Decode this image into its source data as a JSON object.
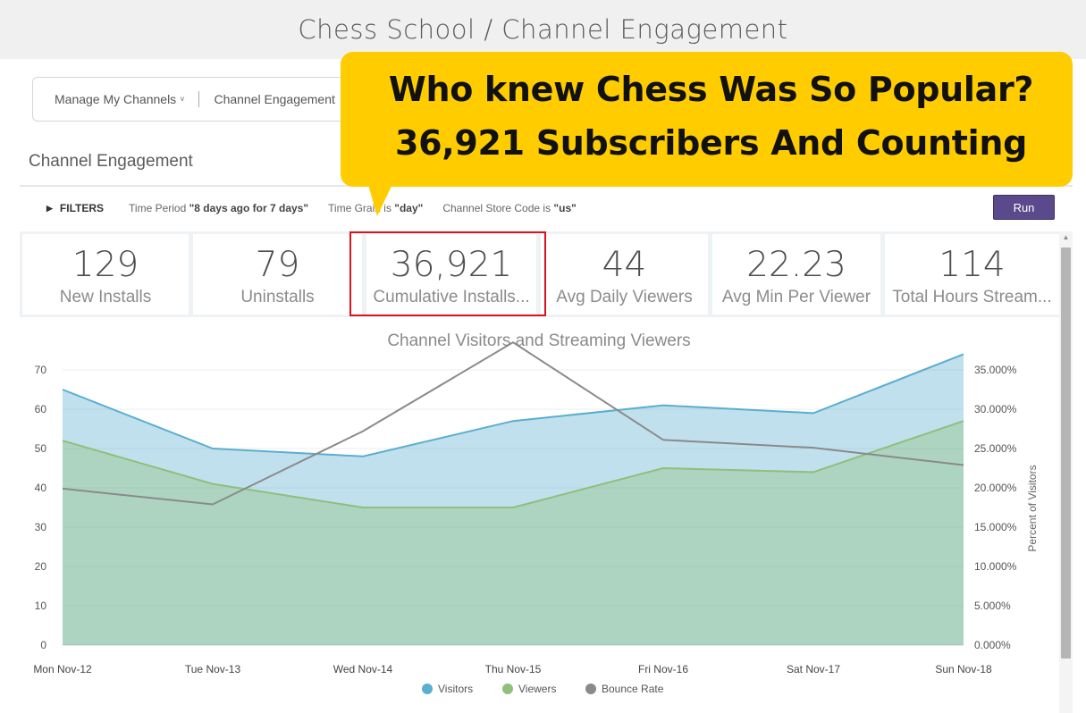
{
  "page": {
    "title": "Chess School / Channel Engagement"
  },
  "breadcrumb": {
    "item1": "Manage My Channels",
    "item2": "Channel Engagement"
  },
  "section": {
    "title": "Channel Engagement"
  },
  "filters": {
    "toggle_label": "FILTERS",
    "time_period_prefix": "Time Period ",
    "time_period_value": "\"8 days ago for 7 days\"",
    "time_grain_prefix": "Time Grain is ",
    "time_grain_value": "\"day\"",
    "store_code_prefix": "Channel Store Code is ",
    "store_code_value": "\"us\"",
    "run_label": "Run"
  },
  "kpis": [
    {
      "value": "129",
      "label": "New Installs"
    },
    {
      "value": "79",
      "label": "Uninstalls"
    },
    {
      "value": "36,921",
      "label": "Cumulative Installs..."
    },
    {
      "value": "44",
      "label": "Avg Daily Viewers"
    },
    {
      "value": "22.23",
      "label": "Avg Min Per Viewer"
    },
    {
      "value": "114",
      "label": "Total Hours Stream..."
    }
  ],
  "callout": {
    "line1": "Who knew Chess Was So Popular?",
    "line2": "36,921 Subscribers And Counting",
    "color": "#ffcc00"
  },
  "chart_data": {
    "type": "area",
    "title": "Channel Visitors and Streaming Viewers",
    "categories": [
      "Mon Nov-12",
      "Tue Nov-13",
      "Wed Nov-14",
      "Thu Nov-15",
      "Fri Nov-16",
      "Sat Nov-17",
      "Sun Nov-18"
    ],
    "series": [
      {
        "name": "Visitors",
        "values": [
          65,
          50,
          48,
          57,
          61,
          59,
          74
        ],
        "color": "#5aaed0",
        "axis": "left",
        "style": "area"
      },
      {
        "name": "Viewers",
        "values": [
          52,
          41,
          35,
          35,
          45,
          44,
          57
        ],
        "color": "#8fbf7a",
        "axis": "left",
        "style": "area"
      },
      {
        "name": "Bounce Rate",
        "values": [
          19.9,
          17.9,
          27.2,
          38.5,
          26.1,
          25.1,
          22.9
        ],
        "color": "#8a8a8a",
        "axis": "right",
        "style": "line"
      }
    ],
    "ylim": [
      0,
      70
    ],
    "yticks": [
      "0",
      "10",
      "20",
      "30",
      "40",
      "50",
      "60",
      "70"
    ],
    "y2label": "Percent of Visitors",
    "y2lim": [
      0,
      35
    ],
    "y2ticks": [
      "0.000%",
      "5.000%",
      "10.000%",
      "15.000%",
      "20.000%",
      "25.000%",
      "30.000%",
      "35.000%"
    ],
    "grid": true,
    "legend": "bottom-center"
  }
}
